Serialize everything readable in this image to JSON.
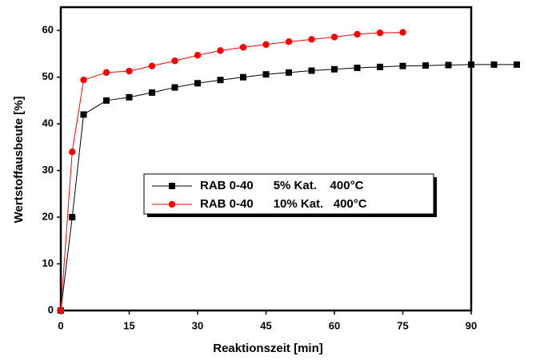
{
  "chart_data": {
    "type": "line",
    "xlabel": "Reaktionszeit [min]",
    "ylabel": "Wertstoffausbeute [%]",
    "x": [
      0,
      2.5,
      5,
      10,
      15,
      20,
      25,
      30,
      35,
      40,
      45,
      50,
      55,
      60,
      65,
      70,
      75,
      80,
      85,
      90,
      95,
      100
    ],
    "series": [
      {
        "name": "RAB 0-40      5% Kat.    400°C",
        "color": "#000000",
        "marker": "square",
        "values": [
          0,
          20,
          42,
          45,
          45.7,
          46.7,
          47.8,
          48.7,
          49.4,
          50,
          50.6,
          51,
          51.4,
          51.7,
          52,
          52.2,
          52.4,
          52.5,
          52.6,
          52.7,
          52.7,
          52.7
        ]
      },
      {
        "name": "RAB 0-40      10% Kat.   400°C",
        "color": "#ff0000",
        "marker": "circle",
        "values": [
          0,
          34,
          49.4,
          51,
          51.3,
          52.4,
          53.5,
          54.7,
          55.7,
          56.4,
          57,
          57.6,
          58.1,
          58.6,
          59.2,
          59.5,
          59.6,
          null,
          null,
          null,
          null,
          null
        ]
      }
    ],
    "xlim": [
      0,
      90
    ],
    "xticks": [
      0,
      15,
      30,
      45,
      60,
      75,
      90
    ],
    "ylim": [
      0,
      65
    ],
    "yticks": [
      0,
      10,
      20,
      30,
      40,
      50,
      60
    ]
  }
}
